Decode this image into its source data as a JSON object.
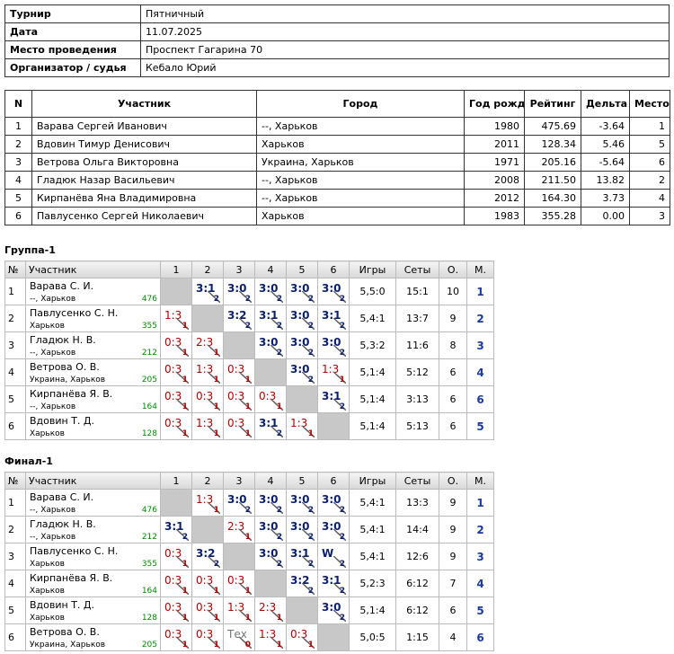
{
  "info": {
    "rows": [
      [
        "Турнир",
        "Пятничный"
      ],
      [
        "Дата",
        "11.07.2025"
      ],
      [
        "Место проведения",
        "Проспект Гагарина 70"
      ],
      [
        "Организатор / судья",
        "Кебало Юрий"
      ]
    ]
  },
  "participants": {
    "header": [
      "N",
      "Участник",
      "Город",
      "Год рожд.",
      "Рейтинг",
      "Дельта",
      "Место"
    ],
    "rows": [
      [
        "1",
        "Варава Сергей Иванович",
        "--, Харьков",
        "1980",
        "475.69",
        "-3.64",
        "1"
      ],
      [
        "2",
        "Вдовин Тимур Денисович",
        "Харьков",
        "2011",
        "128.34",
        "5.46",
        "5"
      ],
      [
        "3",
        "Ветрова Ольга Викторовна",
        "Украина, Харьков",
        "1971",
        "205.16",
        "-5.64",
        "6"
      ],
      [
        "4",
        "Гладюк Назар Васильевич",
        "--, Харьков",
        "2008",
        "211.50",
        "13.82",
        "2"
      ],
      [
        "5",
        "Кирпанёва Яна Владимировна",
        "--, Харьков",
        "2012",
        "164.30",
        "3.73",
        "4"
      ],
      [
        "6",
        "Павлусенко Сергей Николаевич",
        "Харьков",
        "1983",
        "355.28",
        "0.00",
        "3"
      ]
    ]
  },
  "groups": [
    {
      "title": "Группа-1",
      "header": [
        "№",
        "Участник",
        "1",
        "2",
        "3",
        "4",
        "5",
        "6",
        "Игры",
        "Сеты",
        "О.",
        "М."
      ],
      "rows": [
        {
          "n": "1",
          "name": "Варава С. И.",
          "city": "--, Харьков",
          "rating": "476",
          "cells": [
            null,
            {
              "score": "3:1",
              "pts": "2"
            },
            {
              "score": "3:0",
              "pts": "2"
            },
            {
              "score": "3:0",
              "pts": "2"
            },
            {
              "score": "3:0",
              "pts": "2"
            },
            {
              "score": "3:0",
              "pts": "2"
            }
          ],
          "games": "5,5:0",
          "sets": "15:1",
          "points": "10",
          "place": "1"
        },
        {
          "n": "2",
          "name": "Павлусенко С. Н.",
          "city": "Харьков",
          "rating": "355",
          "cells": [
            {
              "score": "1:3",
              "pts": "1"
            },
            null,
            {
              "score": "3:2",
              "pts": "2"
            },
            {
              "score": "3:1",
              "pts": "2"
            },
            {
              "score": "3:0",
              "pts": "2"
            },
            {
              "score": "3:1",
              "pts": "2"
            }
          ],
          "games": "5,4:1",
          "sets": "13:7",
          "points": "9",
          "place": "2"
        },
        {
          "n": "3",
          "name": "Гладюк Н. В.",
          "city": "--, Харьков",
          "rating": "212",
          "cells": [
            {
              "score": "0:3",
              "pts": "1"
            },
            {
              "score": "2:3",
              "pts": "1"
            },
            null,
            {
              "score": "3:0",
              "pts": "2"
            },
            {
              "score": "3:0",
              "pts": "2"
            },
            {
              "score": "3:0",
              "pts": "2"
            }
          ],
          "games": "5,3:2",
          "sets": "11:6",
          "points": "8",
          "place": "3"
        },
        {
          "n": "4",
          "name": "Ветрова О. В.",
          "city": "Украина, Харьков",
          "rating": "205",
          "cells": [
            {
              "score": "0:3",
              "pts": "1"
            },
            {
              "score": "1:3",
              "pts": "1"
            },
            {
              "score": "0:3",
              "pts": "1"
            },
            null,
            {
              "score": "3:0",
              "pts": "2"
            },
            {
              "score": "1:3",
              "pts": "1"
            }
          ],
          "games": "5,1:4",
          "sets": "5:12",
          "points": "6",
          "place": "4"
        },
        {
          "n": "5",
          "name": "Кирпанёва Я. В.",
          "city": "--, Харьков",
          "rating": "164",
          "cells": [
            {
              "score": "0:3",
              "pts": "1"
            },
            {
              "score": "0:3",
              "pts": "1"
            },
            {
              "score": "0:3",
              "pts": "1"
            },
            {
              "score": "0:3",
              "pts": "1"
            },
            null,
            {
              "score": "3:1",
              "pts": "2"
            }
          ],
          "games": "5,1:4",
          "sets": "3:13",
          "points": "6",
          "place": "6"
        },
        {
          "n": "6",
          "name": "Вдовин Т. Д.",
          "city": "Харьков",
          "rating": "128",
          "cells": [
            {
              "score": "0:3",
              "pts": "1"
            },
            {
              "score": "1:3",
              "pts": "1"
            },
            {
              "score": "0:3",
              "pts": "1"
            },
            {
              "score": "3:1",
              "pts": "2"
            },
            {
              "score": "1:3",
              "pts": "1"
            },
            null
          ],
          "games": "5,1:4",
          "sets": "5:13",
          "points": "6",
          "place": "5"
        }
      ]
    },
    {
      "title": "Финал-1",
      "header": [
        "№",
        "Участник",
        "1",
        "2",
        "3",
        "4",
        "5",
        "6",
        "Игры",
        "Сеты",
        "О.",
        "М."
      ],
      "rows": [
        {
          "n": "1",
          "name": "Варава С. И.",
          "city": "--, Харьков",
          "rating": "476",
          "cells": [
            null,
            {
              "score": "1:3",
              "pts": "1"
            },
            {
              "score": "3:0",
              "pts": "2"
            },
            {
              "score": "3:0",
              "pts": "2"
            },
            {
              "score": "3:0",
              "pts": "2"
            },
            {
              "score": "3:0",
              "pts": "2"
            }
          ],
          "games": "5,4:1",
          "sets": "13:3",
          "points": "9",
          "place": "1"
        },
        {
          "n": "2",
          "name": "Гладюк Н. В.",
          "city": "--, Харьков",
          "rating": "212",
          "cells": [
            {
              "score": "3:1",
              "pts": "2"
            },
            null,
            {
              "score": "2:3",
              "pts": "1"
            },
            {
              "score": "3:0",
              "pts": "2"
            },
            {
              "score": "3:0",
              "pts": "2"
            },
            {
              "score": "3:0",
              "pts": "2"
            }
          ],
          "games": "5,4:1",
          "sets": "14:4",
          "points": "9",
          "place": "2"
        },
        {
          "n": "3",
          "name": "Павлусенко С. Н.",
          "city": "Харьков",
          "rating": "355",
          "cells": [
            {
              "score": "0:3",
              "pts": "1"
            },
            {
              "score": "3:2",
              "pts": "2"
            },
            null,
            {
              "score": "3:0",
              "pts": "2"
            },
            {
              "score": "3:1",
              "pts": "2"
            },
            {
              "score": "W",
              "pts": "2"
            }
          ],
          "games": "5,4:1",
          "sets": "12:6",
          "points": "9",
          "place": "3"
        },
        {
          "n": "4",
          "name": "Кирпанёва Я. В.",
          "city": "Харьков",
          "rating": "164",
          "cells": [
            {
              "score": "0:3",
              "pts": "1"
            },
            {
              "score": "0:3",
              "pts": "1"
            },
            {
              "score": "0:3",
              "pts": "1"
            },
            null,
            {
              "score": "3:2",
              "pts": "2"
            },
            {
              "score": "3:1",
              "pts": "2"
            }
          ],
          "games": "5,2:3",
          "sets": "6:12",
          "points": "7",
          "place": "4"
        },
        {
          "n": "5",
          "name": "Вдовин Т. Д.",
          "city": "Харьков",
          "rating": "128",
          "cells": [
            {
              "score": "0:3",
              "pts": "1"
            },
            {
              "score": "0:3",
              "pts": "1"
            },
            {
              "score": "1:3",
              "pts": "1"
            },
            {
              "score": "2:3",
              "pts": "1"
            },
            null,
            {
              "score": "3:0",
              "pts": "2"
            }
          ],
          "games": "5,1:4",
          "sets": "6:12",
          "points": "6",
          "place": "5"
        },
        {
          "n": "6",
          "name": "Ветрова О. В.",
          "city": "Украина, Харьков",
          "rating": "205",
          "cells": [
            {
              "score": "0:3",
              "pts": "1"
            },
            {
              "score": "0:3",
              "pts": "1"
            },
            {
              "score": "Тех",
              "pts": "0"
            },
            {
              "score": "1:3",
              "pts": "1"
            },
            {
              "score": "0:3",
              "pts": "1"
            },
            null
          ],
          "games": "5,0:5",
          "sets": "1:15",
          "points": "4",
          "place": "6"
        }
      ]
    }
  ]
}
